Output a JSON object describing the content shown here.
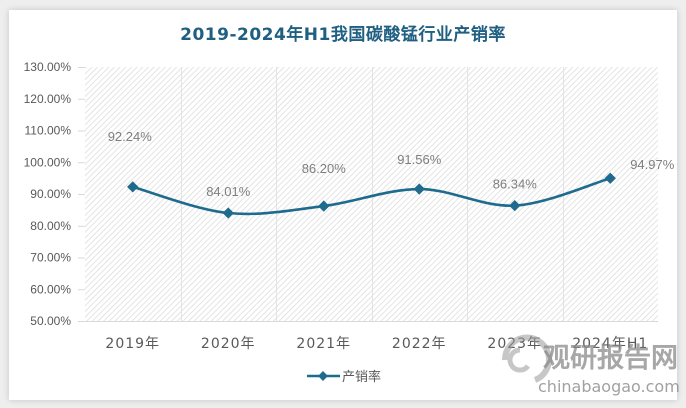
{
  "title": "2019-2024年H1我国碳酸锰行业产销率",
  "chart_data": {
    "type": "line",
    "title": "2019-2024年H1我国碳酸锰行业产销率",
    "categories": [
      "2019年",
      "2020年",
      "2021年",
      "2022年",
      "2023年",
      "2024年H1"
    ],
    "series": [
      {
        "name": "产销率",
        "values": [
          92.24,
          84.01,
          86.2,
          91.56,
          86.34,
          94.97
        ],
        "color": "#1f6b8e"
      }
    ],
    "data_labels": [
      "92.24%",
      "84.01%",
      "86.20%",
      "91.56%",
      "86.34%",
      "94.97%"
    ],
    "xlabel": "",
    "ylabel": "",
    "ylim": [
      50,
      130
    ],
    "yticks": [
      "130.00%",
      "120.00%",
      "110.00%",
      "100.00%",
      "90.00%",
      "80.00%",
      "70.00%",
      "60.00%",
      "50.00%"
    ],
    "grid": "vertical category gridlines, hatched plot background",
    "legend_position": "bottom",
    "smooth": true,
    "marker": "diamond"
  },
  "legend": {
    "label": "产销率"
  },
  "watermark": {
    "cn": "观研报告网",
    "url": "chinabaogao.com"
  }
}
